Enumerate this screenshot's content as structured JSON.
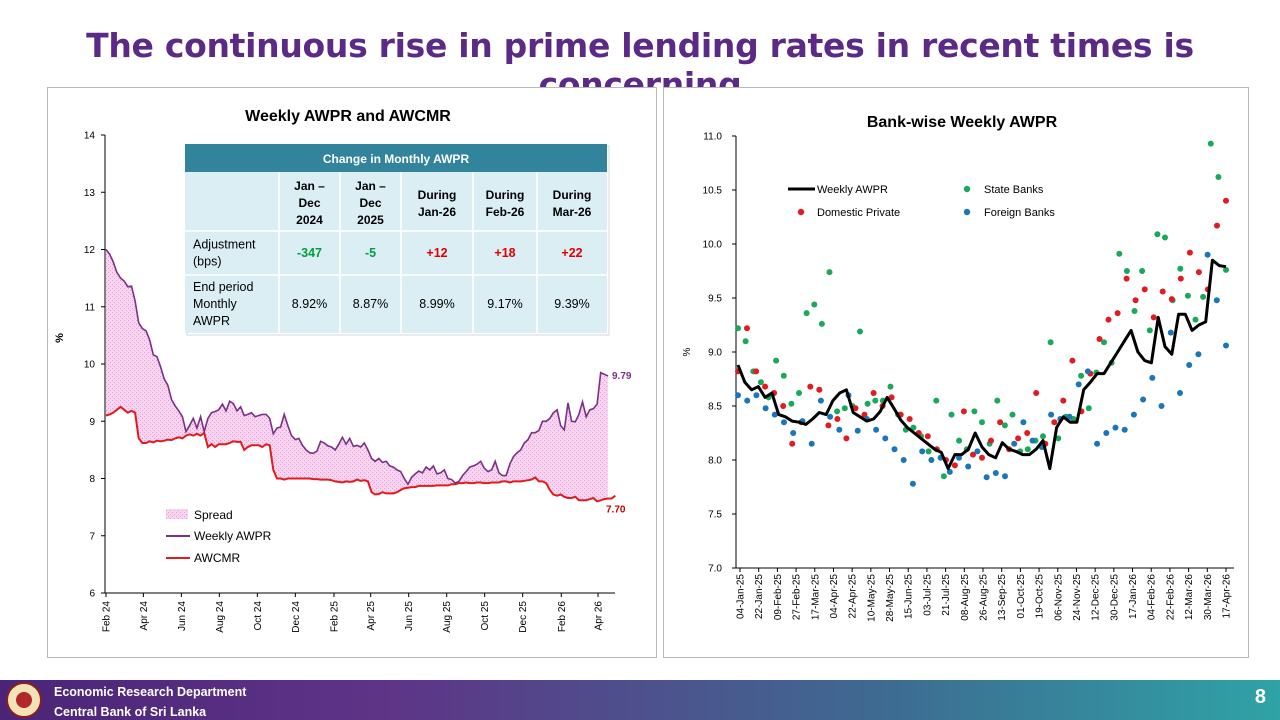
{
  "slide": {
    "title": "The continuous rise in prime lending rates in recent times is concerning",
    "footer_line1": "Economic Research Department",
    "footer_line2": "Central Bank of Sri Lanka",
    "page_number": "8"
  },
  "colors": {
    "awpr": "#7b2f86",
    "awcmr": "#e31a1c",
    "spread": "#f5cfee",
    "state": "#1aa95a",
    "domestic": "#e21b23",
    "foreign": "#1b75bb",
    "table_header": "#31849b",
    "table_body": "#dbeef3"
  },
  "table": {
    "title": "Change in Monthly AWPR",
    "col_headers": [
      [
        "Jan –",
        "Dec",
        "2024"
      ],
      [
        "Jan –",
        "Dec",
        "2025"
      ],
      [
        "During",
        "Jan-26"
      ],
      [
        "During",
        "Feb-26"
      ],
      [
        "During",
        "Mar-26"
      ]
    ],
    "rows": [
      {
        "label": [
          "Adjustment",
          "(bps)"
        ],
        "cells": [
          "-347",
          "-5",
          "+12",
          "+18",
          "+22"
        ],
        "cell_colors": [
          "green",
          "green",
          "red",
          "red",
          "red"
        ]
      },
      {
        "label": [
          "End period",
          "Monthly",
          "AWPR"
        ],
        "cells": [
          "8.92%",
          "8.87%",
          "8.99%",
          "9.17%",
          "9.39%"
        ],
        "cell_colors": [
          "black",
          "black",
          "black",
          "black",
          "black"
        ]
      }
    ]
  },
  "chart_data": [
    {
      "type": "line",
      "title": "Weekly AWPR and AWCMR",
      "ylabel": "%",
      "ylim": [
        6,
        14
      ],
      "yticks": [
        6,
        7,
        8,
        9,
        10,
        11,
        12,
        13,
        14
      ],
      "x_tick_labels": [
        "Feb 24",
        "Apr 24",
        "Jun 24",
        "Aug 24",
        "Oct 24",
        "Dec 24",
        "Feb 25",
        "Apr 25",
        "Jun 25",
        "Aug 25",
        "Oct 25",
        "Dec 25",
        "Feb 26",
        "Apr 26"
      ],
      "x_start": "2024-02-01",
      "x_end": "2026-04-17",
      "legend_position": "bottom-left",
      "legend": [
        "Spread",
        "Weekly AWPR",
        "AWCMR"
      ],
      "end_labels": {
        "awpr": "9.79",
        "awcmr": "7.70"
      },
      "series": [
        {
          "name": "Weekly AWPR",
          "values": [
            12.0,
            11.92,
            11.78,
            11.6,
            11.5,
            11.45,
            11.35,
            11.36,
            11.1,
            10.72,
            10.62,
            10.58,
            10.42,
            10.16,
            10.13,
            9.95,
            9.74,
            9.63,
            9.38,
            9.27,
            9.18,
            9.08,
            8.82,
            8.93,
            9.05,
            8.88,
            9.08,
            8.82,
            9.05,
            9.15,
            9.17,
            9.2,
            9.3,
            9.18,
            9.35,
            9.31,
            9.18,
            9.25,
            9.1,
            9.12,
            9.15,
            9.08,
            9.1,
            9.12,
            9.12,
            9.05,
            8.78,
            8.88,
            8.9,
            9.12,
            8.92,
            8.75,
            8.68,
            8.7,
            8.58,
            8.5,
            8.45,
            8.44,
            8.48,
            8.65,
            8.62,
            8.57,
            8.55,
            8.5,
            8.6,
            8.72,
            8.6,
            8.7,
            8.56,
            8.58,
            8.55,
            8.62,
            8.5,
            8.35,
            8.3,
            8.35,
            8.28,
            8.3,
            8.22,
            8.2,
            8.15,
            8.12,
            8.0,
            7.9,
            8.02,
            8.08,
            8.13,
            8.1,
            8.2,
            8.15,
            8.22,
            8.08,
            8.1,
            8.15,
            8.0,
            7.98,
            7.92,
            7.95,
            8.05,
            8.12,
            8.2,
            8.22,
            8.25,
            8.3,
            8.18,
            8.12,
            8.15,
            8.3,
            8.1,
            8.05,
            8.05,
            8.25,
            8.38,
            8.45,
            8.5,
            8.62,
            8.68,
            8.8,
            8.8,
            8.84,
            9.0,
            9.0,
            9.05,
            9.15,
            9.2,
            8.92,
            8.85,
            9.32,
            9.0,
            8.99,
            9.12,
            9.34,
            9.08,
            9.2,
            9.22,
            9.3,
            9.85,
            9.82,
            9.79
          ]
        },
        {
          "name": "AWCMR",
          "values": [
            9.1,
            9.12,
            9.15,
            9.2,
            9.25,
            9.2,
            9.15,
            9.18,
            9.15,
            8.7,
            8.62,
            8.62,
            8.65,
            8.63,
            8.66,
            8.65,
            8.66,
            8.68,
            8.67,
            8.7,
            8.72,
            8.7,
            8.75,
            8.77,
            8.75,
            8.78,
            8.75,
            8.8,
            8.55,
            8.6,
            8.55,
            8.6,
            8.6,
            8.6,
            8.62,
            8.65,
            8.64,
            8.64,
            8.5,
            8.55,
            8.58,
            8.58,
            8.58,
            8.55,
            8.6,
            8.58,
            8.15,
            8.0,
            8.0,
            7.98,
            8.0,
            8.0,
            8.0,
            8.0,
            8.0,
            8.0,
            8.0,
            7.99,
            7.99,
            7.98,
            7.98,
            7.98,
            7.97,
            7.95,
            7.94,
            7.93,
            7.95,
            7.94,
            7.95,
            7.98,
            7.96,
            7.97,
            7.95,
            7.76,
            7.72,
            7.73,
            7.76,
            7.74,
            7.74,
            7.74,
            7.76,
            7.8,
            7.83,
            7.84,
            7.85,
            7.85,
            7.87,
            7.87,
            7.87,
            7.87,
            7.87,
            7.88,
            7.88,
            7.88,
            7.88,
            7.9,
            7.9,
            7.92,
            7.92,
            7.93,
            7.92,
            7.92,
            7.93,
            7.93,
            7.92,
            7.92,
            7.93,
            7.93,
            7.93,
            7.95,
            7.95,
            7.93,
            7.95,
            7.95,
            7.95,
            7.96,
            7.97,
            7.98,
            8.02,
            7.95,
            7.95,
            7.92,
            7.8,
            7.72,
            7.7,
            7.72,
            7.68,
            7.66,
            7.66,
            7.68,
            7.62,
            7.62,
            7.62,
            7.64,
            7.66,
            7.6,
            7.62,
            7.64,
            7.65,
            7.65,
            7.7
          ]
        }
      ]
    },
    {
      "type": "scatter",
      "title": "Bank-wise Weekly AWPR",
      "ylabel": "%",
      "ylim": [
        7.0,
        11.0
      ],
      "yticks": [
        "7.0",
        "7.5",
        "8.0",
        "8.5",
        "9.0",
        "9.5",
        "10.0",
        "10.5",
        "11.0"
      ],
      "categories": [
        "04-Jan-25",
        "22-Jan-25",
        "09-Feb-25",
        "27-Feb-25",
        "17-Mar-25",
        "04-Apr-25",
        "22-Apr-25",
        "10-May-25",
        "28-May-25",
        "15-Jun-25",
        "03-Jul-25",
        "21-Jul-25",
        "08-Aug-25",
        "26-Aug-25",
        "13-Sep-25",
        "01-Oct-25",
        "19-Oct-25",
        "06-Nov-25",
        "24-Nov-25",
        "12-Dec-25",
        "30-Dec-25",
        "17-Jan-26",
        "04-Feb-26",
        "22-Feb-26",
        "12-Mar-26",
        "30-Mar-26",
        "17-Apr-26"
      ],
      "legend_position": "top",
      "legend": [
        "Weekly AWPR",
        "State Banks",
        "Domestic Private",
        "Foreign Banks"
      ],
      "series": [
        {
          "name": "Weekly AWPR",
          "mark": "line",
          "values": [
            8.88,
            8.72,
            8.65,
            8.68,
            8.58,
            8.62,
            8.42,
            8.4,
            8.36,
            8.35,
            8.33,
            8.38,
            8.44,
            8.42,
            8.55,
            8.62,
            8.65,
            8.44,
            8.4,
            8.36,
            8.38,
            8.45,
            8.58,
            8.48,
            8.37,
            8.3,
            8.25,
            8.2,
            8.15,
            8.1,
            8.07,
            7.92,
            8.05,
            8.05,
            8.1,
            8.25,
            8.12,
            8.05,
            8.02,
            8.16,
            8.1,
            8.08,
            8.05,
            8.05,
            8.1,
            8.18,
            7.92,
            8.3,
            8.4,
            8.35,
            8.35,
            8.65,
            8.72,
            8.8,
            8.8,
            8.9,
            9.0,
            9.1,
            9.2,
            9.0,
            8.92,
            8.9,
            9.32,
            9.05,
            8.98,
            9.35,
            9.35,
            9.2,
            9.25,
            9.28,
            9.85,
            9.8,
            9.79
          ]
        },
        {
          "name": "State Banks",
          "mark": "dot",
          "values": [
            9.22,
            9.1,
            8.82,
            8.72,
            8.58,
            8.92,
            8.78,
            8.52,
            8.62,
            9.36,
            9.44,
            9.26,
            9.74,
            8.45,
            8.48,
            8.5,
            9.19,
            8.52,
            8.55,
            8.55,
            8.68,
            8.42,
            8.28,
            8.3,
            8.22,
            8.08,
            8.55,
            7.85,
            8.42,
            8.18,
            8.1,
            8.45,
            8.35,
            8.15,
            8.55,
            8.32,
            8.42,
            8.08,
            8.1,
            8.18,
            8.22,
            9.09,
            8.2,
            8.4,
            8.38,
            8.78,
            8.48,
            8.81,
            9.09,
            8.9,
            9.91,
            9.75,
            9.38,
            9.75,
            9.2,
            10.09,
            10.06,
            9.48,
            9.77,
            9.52,
            9.3,
            9.51,
            10.93,
            10.62,
            9.76
          ]
        },
        {
          "name": "Domestic Private",
          "mark": "dot",
          "values": [
            8.82,
            9.22,
            8.82,
            8.68,
            8.62,
            8.5,
            8.15,
            8.35,
            8.68,
            8.65,
            8.32,
            8.38,
            8.2,
            8.48,
            8.42,
            8.62,
            8.5,
            8.58,
            8.42,
            8.38,
            8.25,
            8.22,
            8.1,
            8.0,
            7.95,
            8.45,
            8.05,
            8.02,
            8.18,
            8.35,
            8.1,
            8.2,
            8.25,
            8.62,
            8.15,
            8.35,
            8.55,
            8.92,
            8.45,
            8.8,
            9.12,
            9.3,
            9.36,
            9.68,
            9.48,
            9.58,
            9.32,
            9.56,
            9.49,
            9.68,
            9.92,
            9.74,
            9.58,
            10.17,
            10.4
          ]
        },
        {
          "name": "Foreign Banks",
          "mark": "dot",
          "values": [
            8.6,
            8.55,
            8.6,
            8.48,
            8.42,
            8.35,
            8.25,
            8.36,
            8.15,
            8.55,
            8.4,
            8.28,
            8.6,
            8.27,
            8.38,
            8.28,
            8.2,
            8.1,
            8.0,
            7.78,
            8.08,
            8.0,
            8.02,
            7.89,
            8.02,
            7.94,
            8.08,
            7.84,
            7.88,
            7.85,
            8.15,
            8.35,
            8.18,
            8.12,
            8.42,
            8.38,
            8.4,
            8.7,
            8.82,
            8.15,
            8.25,
            8.3,
            8.28,
            8.42,
            8.56,
            8.76,
            8.5,
            9.18,
            8.62,
            8.88,
            8.98,
            9.9,
            9.48,
            9.06
          ]
        }
      ]
    }
  ]
}
